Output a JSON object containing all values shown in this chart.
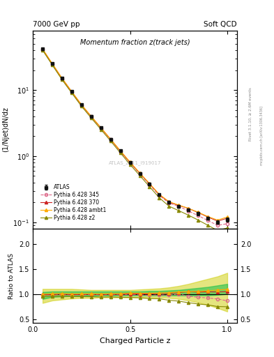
{
  "title_main": "Momentum fraction z(track jets)",
  "header_left": "7000 GeV pp",
  "header_right": "Soft QCD",
  "ylabel_main": "(1/Njet)dN/dz",
  "ylabel_ratio": "Ratio to ATLAS",
  "xlabel": "Charged Particle z",
  "watermark": "ATLAS_2011_I919017",
  "right_label": "mcplots.cern.ch [arXiv:1306.3436]",
  "right_label2": "Rivet 3.1.10, ≥ 2.6M events",
  "xlim": [
    0.0,
    1.05
  ],
  "ylim_main": [
    0.08,
    80.0
  ],
  "ylim_ratio": [
    0.42,
    2.3
  ],
  "yticks_ratio": [
    0.5,
    1.0,
    1.5,
    2.0
  ],
  "z_values": [
    0.05,
    0.1,
    0.15,
    0.2,
    0.25,
    0.3,
    0.35,
    0.4,
    0.45,
    0.5,
    0.55,
    0.6,
    0.65,
    0.7,
    0.75,
    0.8,
    0.85,
    0.9,
    0.95,
    1.0
  ],
  "atlas_data": [
    42.0,
    25.0,
    15.0,
    9.5,
    6.0,
    4.0,
    2.7,
    1.8,
    1.2,
    0.8,
    0.55,
    0.38,
    0.26,
    0.2,
    0.175,
    0.155,
    0.135,
    0.115,
    0.1,
    0.11
  ],
  "atlas_err": [
    1.5,
    0.9,
    0.5,
    0.35,
    0.22,
    0.15,
    0.1,
    0.07,
    0.05,
    0.03,
    0.022,
    0.015,
    0.011,
    0.009,
    0.008,
    0.007,
    0.007,
    0.006,
    0.006,
    0.007
  ],
  "pythia345_data": [
    41.0,
    24.5,
    14.8,
    9.3,
    5.9,
    3.95,
    2.65,
    1.78,
    1.18,
    0.79,
    0.54,
    0.37,
    0.255,
    0.195,
    0.175,
    0.148,
    0.126,
    0.106,
    0.09,
    0.095
  ],
  "pythia370_data": [
    41.5,
    24.8,
    15.0,
    9.4,
    5.95,
    3.98,
    2.68,
    1.79,
    1.19,
    0.8,
    0.55,
    0.381,
    0.262,
    0.202,
    0.18,
    0.162,
    0.14,
    0.12,
    0.104,
    0.115
  ],
  "pythia_ambt1_data": [
    41.8,
    25.1,
    15.1,
    9.5,
    6.02,
    4.01,
    2.7,
    1.81,
    1.21,
    0.815,
    0.558,
    0.385,
    0.265,
    0.205,
    0.182,
    0.162,
    0.142,
    0.122,
    0.108,
    0.12
  ],
  "pythia_z2_data": [
    40.0,
    23.8,
    14.3,
    9.0,
    5.68,
    3.78,
    2.53,
    1.69,
    1.12,
    0.745,
    0.508,
    0.345,
    0.235,
    0.175,
    0.15,
    0.128,
    0.108,
    0.09,
    0.075,
    0.082
  ],
  "color_345": "#dd6688",
  "color_370": "#cc2222",
  "color_ambt1": "#ffaa00",
  "color_z2": "#888800",
  "color_atlas": "#111111",
  "band_color_green": "#00bb44",
  "band_color_yellow": "#cccc00",
  "band_alpha_yellow": 0.5,
  "band_alpha_green": 0.5,
  "green_low": [
    0.9,
    0.94,
    0.95,
    0.96,
    0.96,
    0.96,
    0.97,
    0.97,
    0.97,
    0.97,
    0.97,
    0.97,
    0.97,
    0.97,
    0.97,
    0.97,
    0.97,
    0.97,
    0.98,
    1.0
  ],
  "green_high": [
    1.04,
    1.05,
    1.05,
    1.05,
    1.05,
    1.05,
    1.05,
    1.05,
    1.05,
    1.05,
    1.05,
    1.06,
    1.06,
    1.07,
    1.08,
    1.1,
    1.12,
    1.14,
    1.17,
    1.2
  ],
  "yellow_low": [
    0.82,
    0.87,
    0.89,
    0.91,
    0.92,
    0.92,
    0.93,
    0.93,
    0.93,
    0.93,
    0.93,
    0.93,
    0.93,
    0.92,
    0.9,
    0.87,
    0.83,
    0.78,
    0.72,
    0.65
  ],
  "yellow_high": [
    1.1,
    1.1,
    1.1,
    1.1,
    1.09,
    1.08,
    1.08,
    1.08,
    1.08,
    1.08,
    1.09,
    1.1,
    1.11,
    1.13,
    1.16,
    1.2,
    1.25,
    1.3,
    1.35,
    1.42
  ]
}
